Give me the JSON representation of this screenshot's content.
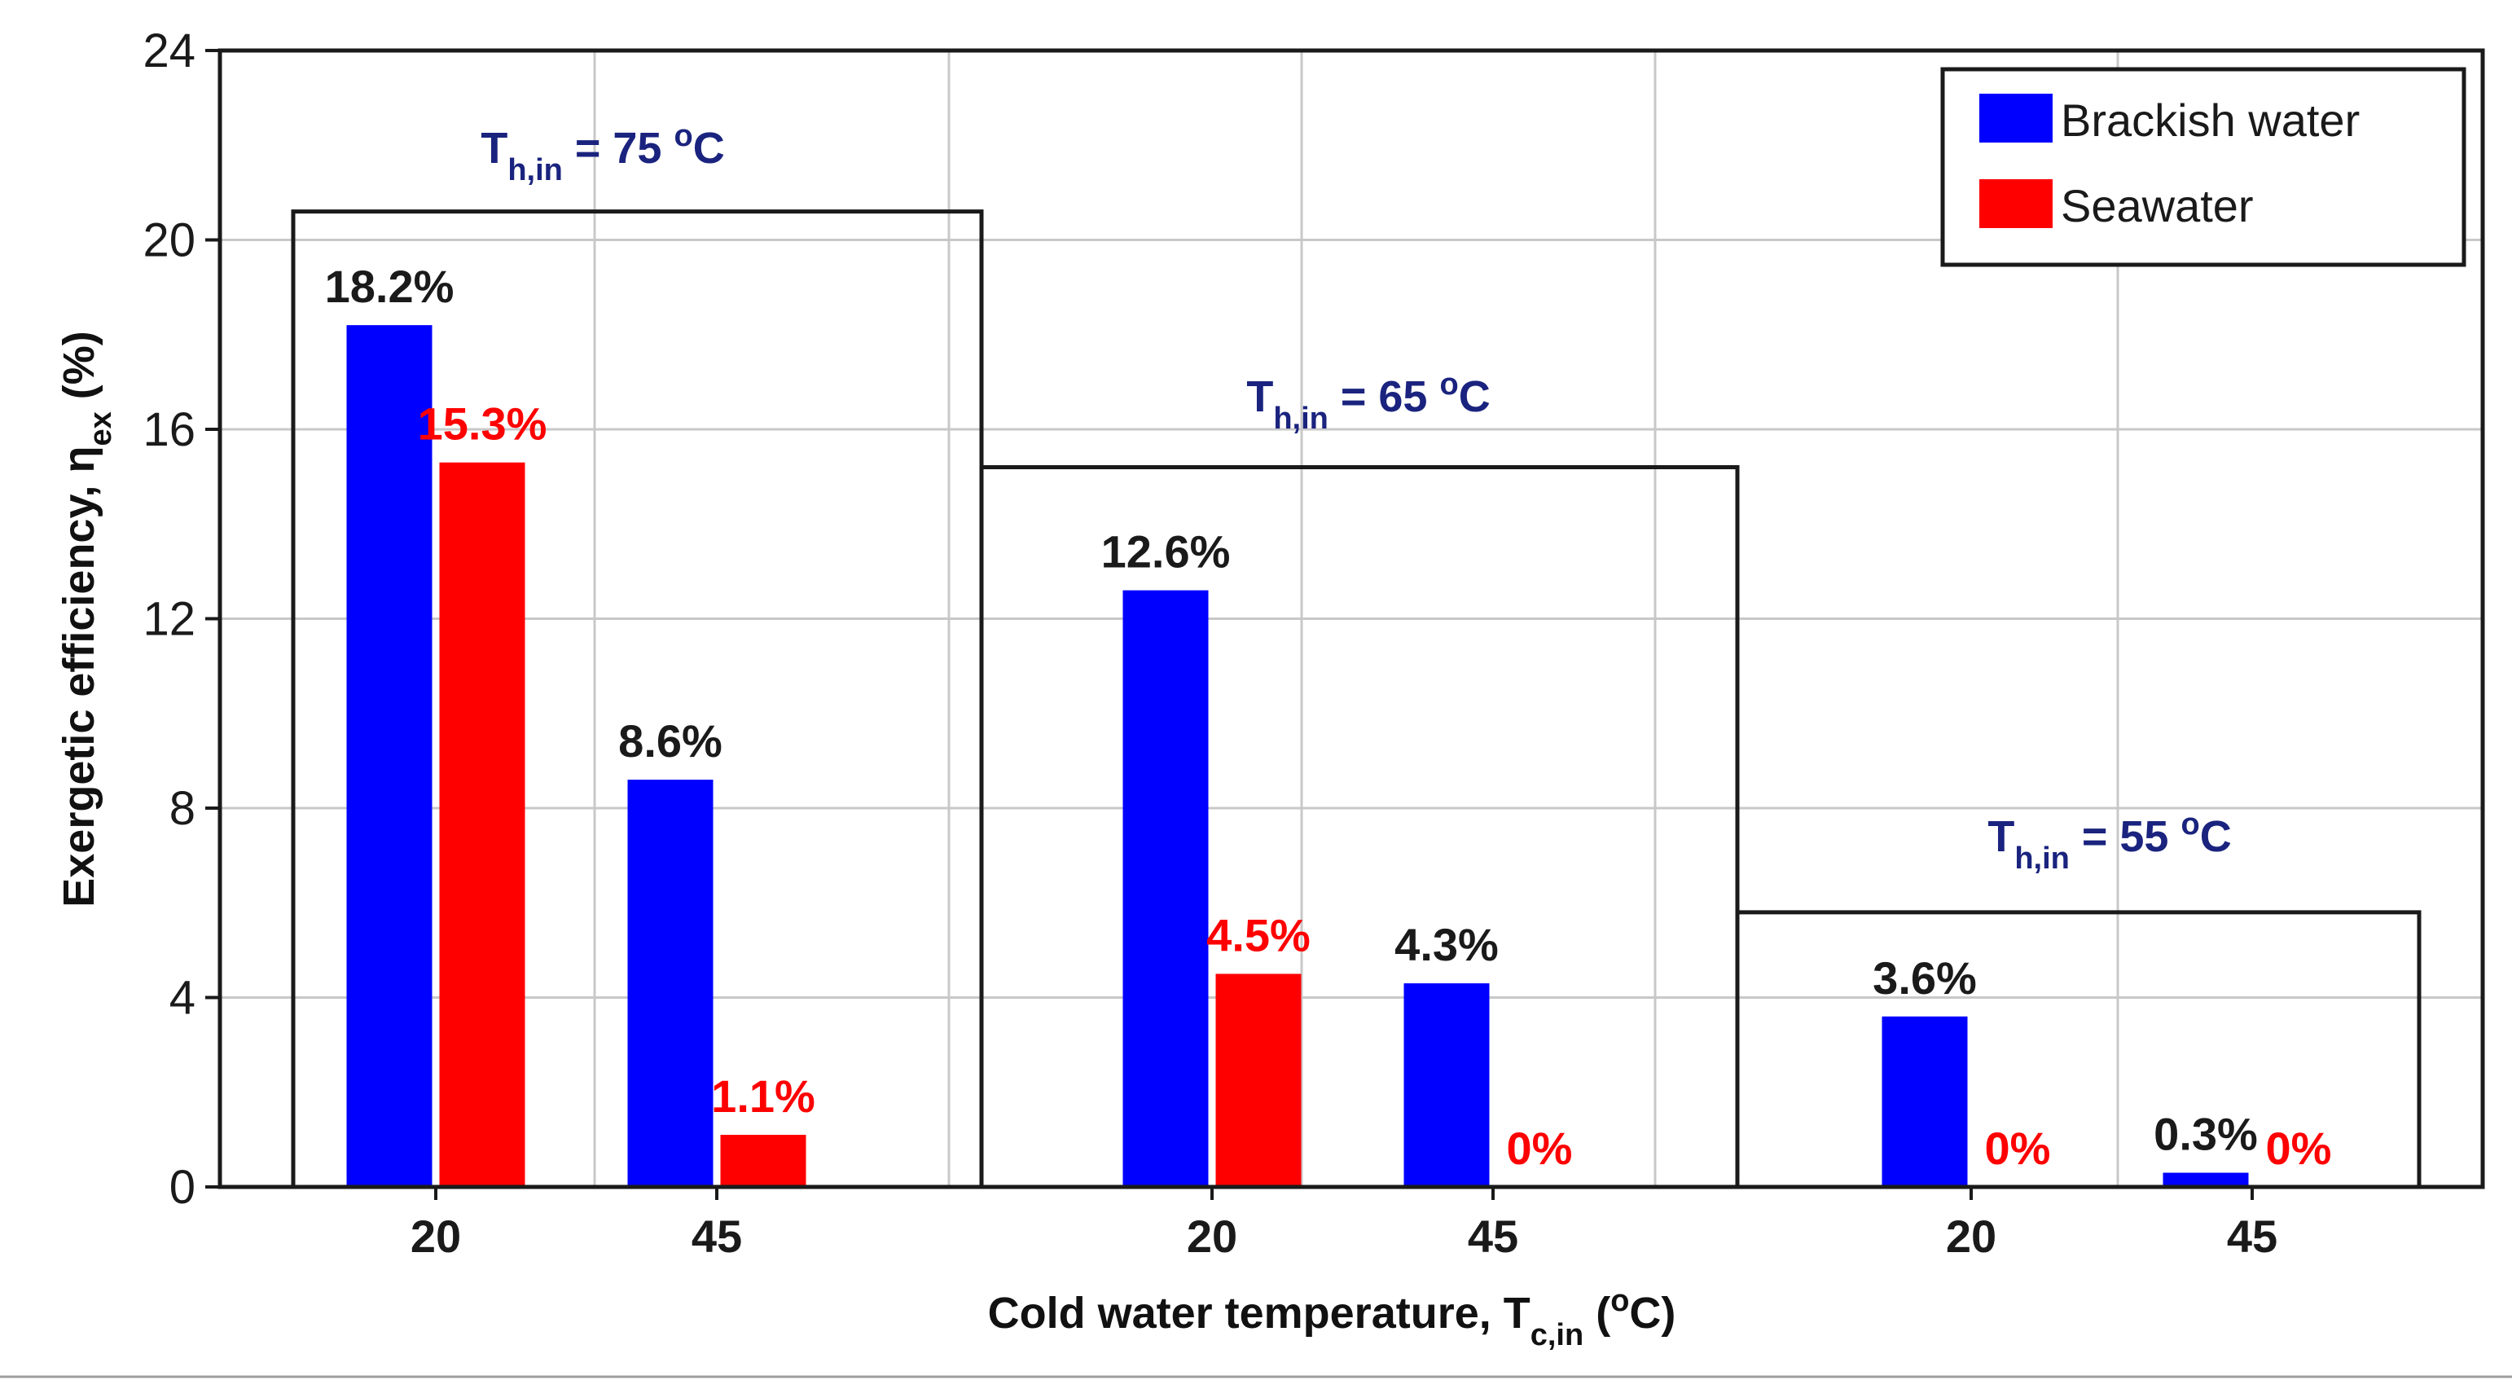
{
  "chart_data": {
    "type": "bar",
    "title": "",
    "xlabel": "Cold water temperature, T",
    "xlabel_sub": "c,in",
    "xlabel_tail": " (",
    "xlabel_sup": "o",
    "xlabel_end": "C)",
    "ylabel": "Exergetic efficiency, η",
    "ylabel_sub": "ex",
    "ylabel_end": " (%)",
    "ylim": [
      0,
      24
    ],
    "yticks": [
      "0",
      "4",
      "8",
      "12",
      "16",
      "20",
      "24"
    ],
    "categories": [
      "20",
      "45",
      "20",
      "45",
      "20",
      "45"
    ],
    "groups": [
      {
        "prefix": "T",
        "sub": "h,in",
        "eq": " = 75 ",
        "sup": "o",
        "unit": "C",
        "box_top": 20.6
      },
      {
        "prefix": "T",
        "sub": "h,in",
        "eq": " = 65 ",
        "sup": "o",
        "unit": "C",
        "box_top": 15.2
      },
      {
        "prefix": "T",
        "sub": "h,in",
        "eq": " = 55 ",
        "sup": "o",
        "unit": "C",
        "box_top": 5.8
      }
    ],
    "series": [
      {
        "name": "Brackish water",
        "color": "#0000ff",
        "values": [
          18.2,
          8.6,
          12.6,
          4.3,
          3.6,
          0.3
        ],
        "labels": [
          "18.2%",
          "8.6%",
          "12.6%",
          "4.3%",
          "3.6%",
          "0.3%"
        ],
        "label_color": "#1a1a1a"
      },
      {
        "name": "Seawater",
        "color": "#ff0000",
        "values": [
          15.3,
          1.1,
          4.5,
          0,
          0,
          0
        ],
        "labels": [
          "15.3%",
          "1.1%",
          "4.5%",
          "0%",
          "0%",
          "0%"
        ],
        "label_color": "#ff0000"
      }
    ],
    "legend_position": "top-right",
    "grid": true,
    "group_label_color": "#1a237e"
  }
}
